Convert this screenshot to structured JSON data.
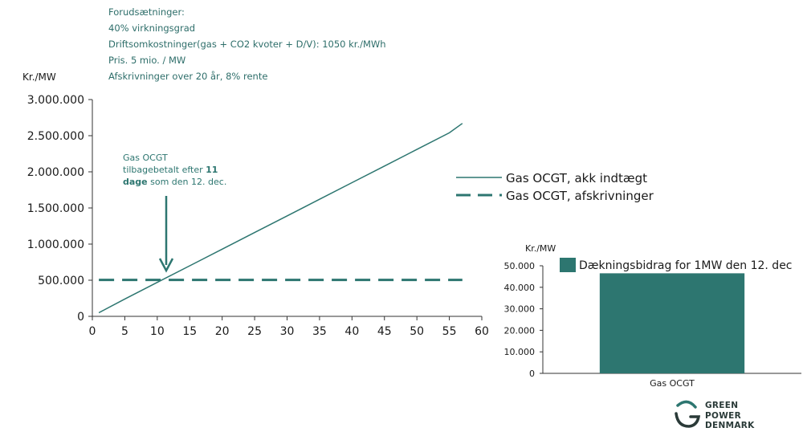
{
  "assumptions": {
    "title": "Forudsætninger:",
    "lines": [
      "40% virkningsgrad",
      "Driftsomkostninger(gas + CO2 kvoter + D/V):  1050 kr./MWh",
      "Pris. 5 mio. / MW",
      "Afskrivninger over 20 år, 8% rente"
    ]
  },
  "colors": {
    "teal": "#2d7670",
    "axis": "#333333"
  },
  "annotation": {
    "line1": "Gas OCGT",
    "line2_pre": "tilbagebetalt efter ",
    "line2_bold": "11",
    "line3_bold": "dage",
    "line3_post": " som den 12. dec."
  },
  "logo": {
    "line1": "GREEN",
    "line2": "POWER",
    "line3": "DENMARK"
  },
  "chart_data": [
    {
      "type": "line",
      "ylabel": "Kr./MW",
      "xlim": [
        0,
        60
      ],
      "ylim": [
        0,
        3000000
      ],
      "xticks": [
        "0",
        "5",
        "10",
        "15",
        "20",
        "25",
        "30",
        "35",
        "40",
        "45",
        "50",
        "55",
        "60"
      ],
      "yticks": [
        "0",
        "500.000",
        "1.000.000",
        "1.500.000",
        "2.000.000",
        "2.500.000",
        "3.000.000"
      ],
      "grid": false,
      "legend_position": "right",
      "series": [
        {
          "name": "Gas OCGT, akk indtægt",
          "style": "solid",
          "x": [
            1,
            5,
            10,
            15,
            20,
            25,
            30,
            35,
            40,
            45,
            50,
            55,
            57
          ],
          "y": [
            50000,
            240000,
            470000,
            700000,
            930000,
            1160000,
            1390000,
            1620000,
            1850000,
            2080000,
            2310000,
            2540000,
            2670000
          ]
        },
        {
          "name": "Gas OCGT, afskrivninger",
          "style": "dashed",
          "x": [
            1,
            57
          ],
          "y": [
            505000,
            505000
          ]
        }
      ]
    },
    {
      "type": "bar",
      "ylabel": "Kr./MW",
      "ylim": [
        0,
        50000
      ],
      "yticks": [
        "0",
        "10.000",
        "20.000",
        "30.000",
        "40.000",
        "50.000"
      ],
      "categories": [
        "Gas OCGT"
      ],
      "series": [
        {
          "name": "Dækningsbidrag for 1MW den 12. dec",
          "values": [
            46500
          ]
        }
      ],
      "legend_position": "top"
    }
  ]
}
